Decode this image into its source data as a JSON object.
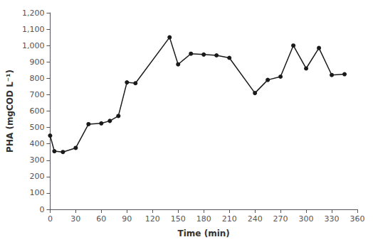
{
  "chart_data": {
    "type": "line",
    "xlabel": "Time (min)",
    "ylabel": "PHA (mgCOD L⁻¹)",
    "x": [
      0,
      5,
      15,
      30,
      45,
      60,
      70,
      80,
      90,
      100,
      140,
      150,
      165,
      180,
      195,
      210,
      240,
      255,
      270,
      285,
      300,
      315,
      330,
      345
    ],
    "values": [
      450,
      355,
      350,
      375,
      520,
      525,
      540,
      570,
      775,
      770,
      1050,
      885,
      950,
      945,
      940,
      925,
      710,
      790,
      810,
      1000,
      860,
      985,
      820,
      825
    ],
    "xlim": [
      0,
      360
    ],
    "ylim": [
      0,
      1200
    ],
    "xticks": [
      0,
      30,
      60,
      90,
      120,
      150,
      180,
      210,
      240,
      270,
      300,
      330,
      360
    ],
    "yticks": [
      0,
      100,
      200,
      300,
      400,
      500,
      600,
      700,
      800,
      900,
      1000,
      1100,
      1200
    ],
    "grid": false,
    "color": "#1a1a1a",
    "marker": "circle"
  }
}
